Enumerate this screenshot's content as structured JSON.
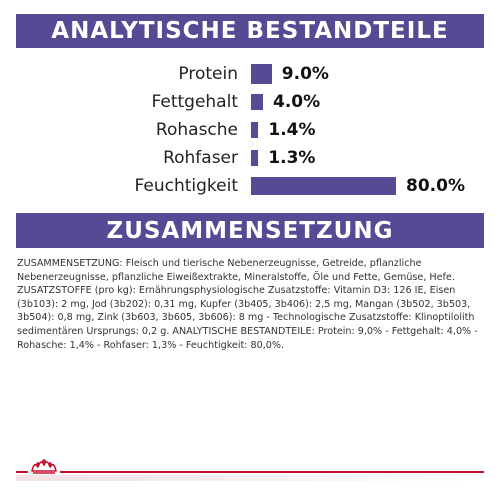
{
  "analysis": {
    "title": "ANALYTISCHE BESTANDTEILE",
    "items": [
      {
        "label": "Protein",
        "value": "9.0%",
        "percent": 9.0
      },
      {
        "label": "Fettgehalt",
        "value": "4.0%",
        "percent": 4.0
      },
      {
        "label": "Rohasche",
        "value": "1.4%",
        "percent": 1.4
      },
      {
        "label": "Rohfaser",
        "value": "1.3%",
        "percent": 1.3
      },
      {
        "label": "Feuchtigkeit",
        "value": "80.0%",
        "percent": 80.0
      }
    ]
  },
  "composition": {
    "title": "ZUSAMMENSETZUNG",
    "text": "ZUSAMMENSETZUNG: Fleisch und tierische Nebenerzeugnisse, Getreide, pflanzliche Nebenerzeugnisse, pflanzliche Eiweißextrakte, Mineralstoffe, Öle und Fette, Gemüse, Hefe. ZUSATZSTOFFE (pro kg): Ernährungsphysiologische Zusatzstoffe: Vitamin D3: 126 IE, Eisen (3b103): 2 mg, Jod (3b202): 0,31 mg, Kupfer (3b405, 3b406): 2,5 mg, Mangan (3b502, 3b503, 3b504): 0,8 mg, Zink (3b603, 3b605, 3b606): 8 mg - Technologische Zusatzstoffe: Klinoptilolith sedimentären Ursprungs: 0,2 g. ANALYTISCHE BESTANDTEILE: Protein: 9,0% - Fettgehalt: 4,0% - Rohasche: 1,4% - Rohfaser: 1,3% - Feuchtigkeit: 80,0%."
  },
  "colors": {
    "banner": "#554a93",
    "bar": "#554a93",
    "footer_accent": "#c8102e"
  },
  "footer": {
    "logo_icon": "crown-icon"
  }
}
